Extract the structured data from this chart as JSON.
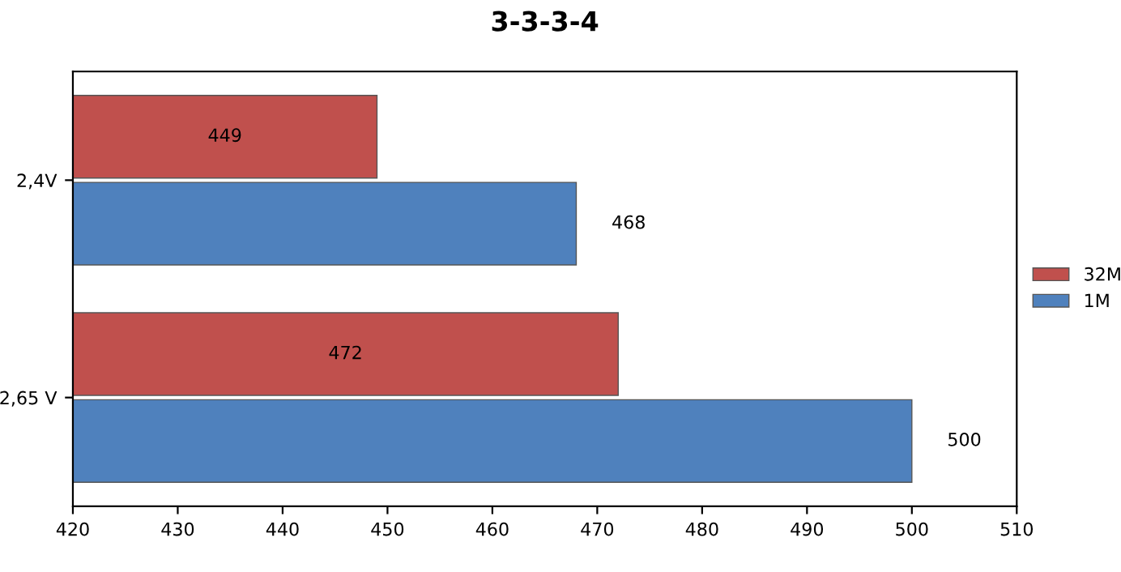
{
  "chart_data": {
    "type": "bar",
    "orientation": "horizontal",
    "title": "3-3-3-4",
    "categories": [
      "2,4V",
      "2,65 V"
    ],
    "series": [
      {
        "name": "32M",
        "color": "#c0504d",
        "values": [
          449,
          472
        ]
      },
      {
        "name": "1M",
        "color": "#4f81bd",
        "values": [
          468,
          500
        ]
      }
    ],
    "xlim": [
      420,
      510
    ],
    "xticks": [
      420,
      430,
      440,
      450,
      460,
      470,
      480,
      490,
      500,
      510
    ],
    "data_labels": true,
    "legend": "right",
    "grid": false
  }
}
